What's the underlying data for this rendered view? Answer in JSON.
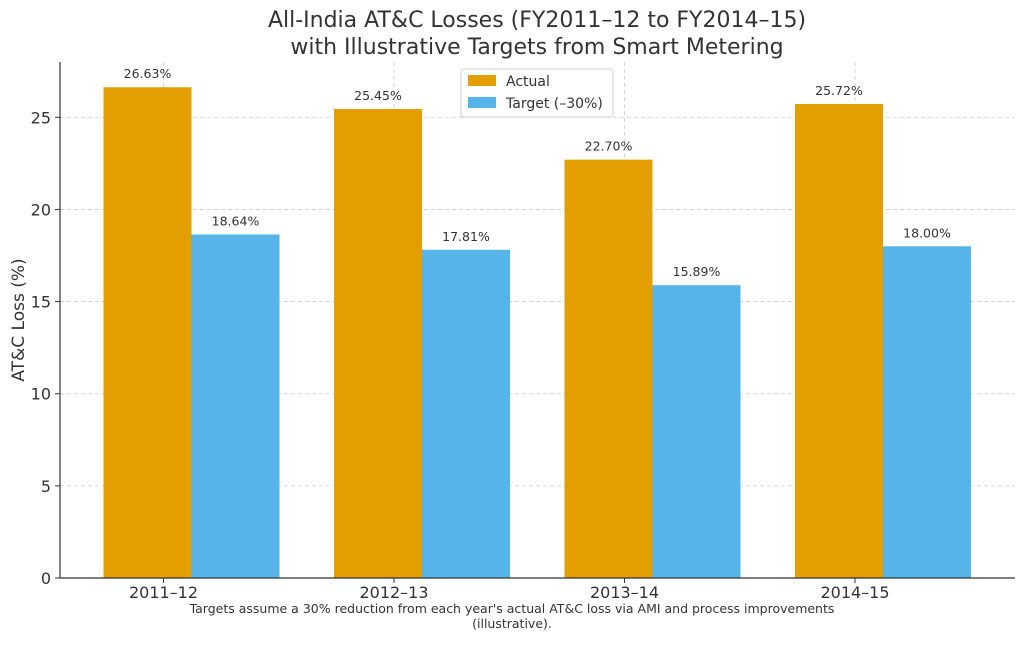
{
  "chart_data": {
    "type": "bar",
    "title_lines": [
      "All-India AT&C Losses (FY2011–12 to FY2014–15)",
      "with Illustrative Targets from Smart Metering"
    ],
    "xlabel": "",
    "ylabel": "AT&C Loss (%)",
    "categories": [
      "2011–12",
      "2012–13",
      "2013–14",
      "2014–15"
    ],
    "series": [
      {
        "name": "Actual",
        "color": "#E39E00",
        "values": [
          26.63,
          25.45,
          22.7,
          25.72
        ],
        "labels": [
          "26.63%",
          "25.45%",
          "22.70%",
          "25.72%"
        ]
      },
      {
        "name": "Target (–30%)",
        "color": "#56B4E9",
        "values": [
          18.64,
          17.81,
          15.89,
          18.0
        ],
        "labels": [
          "18.64%",
          "17.81%",
          "15.89%",
          "18.00%"
        ]
      }
    ],
    "ylim": [
      0,
      28
    ],
    "yticks": [
      0,
      5,
      10,
      15,
      20,
      25
    ],
    "ytick_labels": [
      "0",
      "5",
      "10",
      "15",
      "20",
      "25"
    ],
    "grid": true,
    "legend_position": "top-center",
    "footnote_lines": [
      "Targets assume a 30% reduction from each year's actual AT&C loss via AMI and process improvements",
      "(illustrative)."
    ]
  }
}
